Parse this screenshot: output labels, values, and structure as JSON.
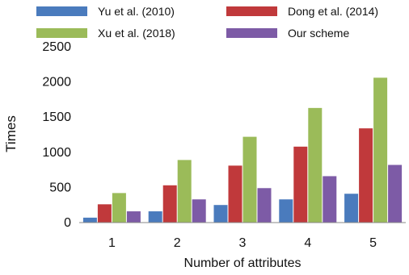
{
  "chart_data": {
    "type": "bar",
    "title": "",
    "xlabel": "Number of attributes",
    "ylabel": "Times",
    "categories": [
      "1",
      "2",
      "3",
      "4",
      "5"
    ],
    "ylim": [
      0,
      2500
    ],
    "yticks": [
      0,
      500,
      1000,
      1500,
      2000,
      2500
    ],
    "grid": false,
    "legend_position": "top",
    "series": [
      {
        "name": "Yu et al. (2010)",
        "color": "#4a7bbd",
        "values": [
          70,
          160,
          250,
          330,
          410
        ]
      },
      {
        "name": "Dong et al. (2014)",
        "color": "#c0393b",
        "values": [
          260,
          530,
          810,
          1080,
          1340
        ]
      },
      {
        "name": "Xu et al. (2018)",
        "color": "#9bbb59",
        "values": [
          420,
          890,
          1220,
          1630,
          2060
        ]
      },
      {
        "name": "Our scheme",
        "color": "#7d5ba6",
        "values": [
          160,
          330,
          490,
          660,
          820
        ]
      }
    ]
  }
}
